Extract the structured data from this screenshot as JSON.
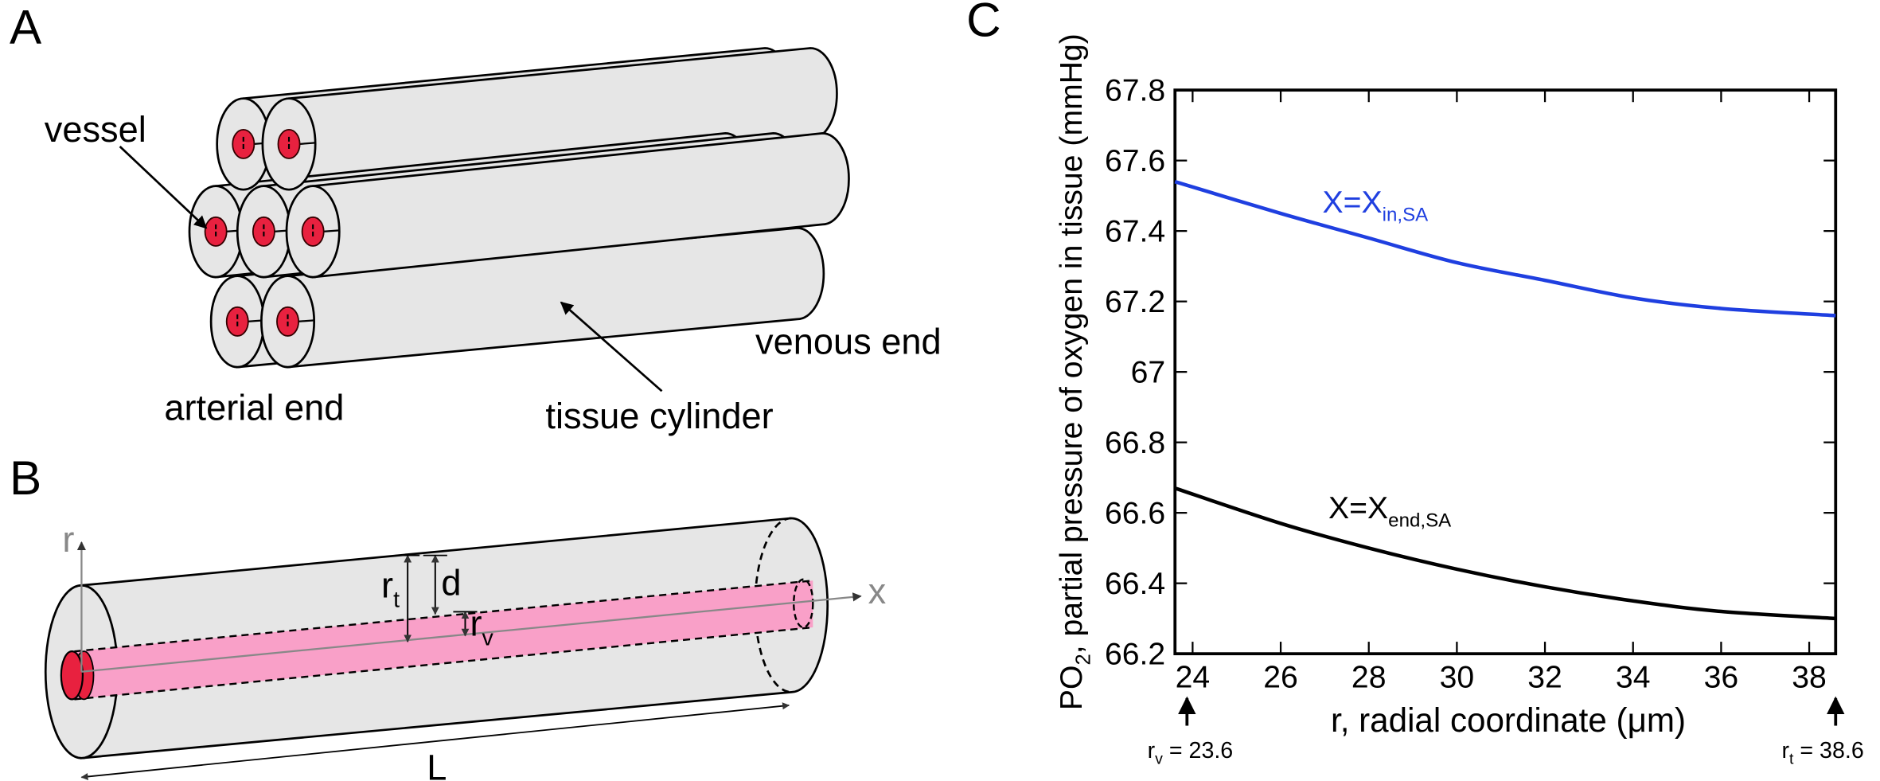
{
  "panel_a": {
    "label": "A",
    "vessel": "vessel",
    "arterial_end": "arterial end",
    "tissue_cylinder": "tissue cylinder",
    "venous_end": "venous end"
  },
  "panel_b": {
    "label": "B",
    "r_axis": "r",
    "x_axis": "x",
    "rt": {
      "main": "r",
      "sub": "t"
    },
    "d": "d",
    "rv": {
      "main": "r",
      "sub": "v"
    },
    "length": "L"
  },
  "chart_data": {
    "type": "line",
    "panel_label": "C",
    "ylabel": {
      "main": "PO",
      "sub": "2",
      "rest": ", partial pressure of oxygen in tissue (mmHg)"
    },
    "xlabel": "r, radial coordinate (μm)",
    "x": [
      23.6,
      26,
      28,
      30,
      32,
      34,
      36,
      38.6
    ],
    "series": [
      {
        "label": {
          "main": "X=X",
          "sub": "in,SA"
        },
        "color": "#1f3fe0",
        "values": [
          67.54,
          67.45,
          67.38,
          67.31,
          67.26,
          67.21,
          67.18,
          67.16
        ]
      },
      {
        "label": {
          "main": "X=X",
          "sub": "end,SA"
        },
        "color": "#000000",
        "values": [
          66.67,
          66.57,
          66.5,
          66.44,
          66.39,
          66.35,
          66.32,
          66.3
        ]
      }
    ],
    "xlim": [
      23.6,
      38.6
    ],
    "xticks": [
      24,
      26,
      28,
      30,
      32,
      34,
      36,
      38
    ],
    "ylim": [
      66.2,
      67.8
    ],
    "yticks": [
      66.2,
      66.4,
      66.6,
      66.8,
      67,
      67.2,
      67.4,
      67.6,
      67.8
    ],
    "markers": [
      {
        "main": "r",
        "sub": "v",
        "rest": " = 23.6"
      },
      {
        "main": "r",
        "sub": "t",
        "rest": " = 38.6"
      }
    ]
  }
}
